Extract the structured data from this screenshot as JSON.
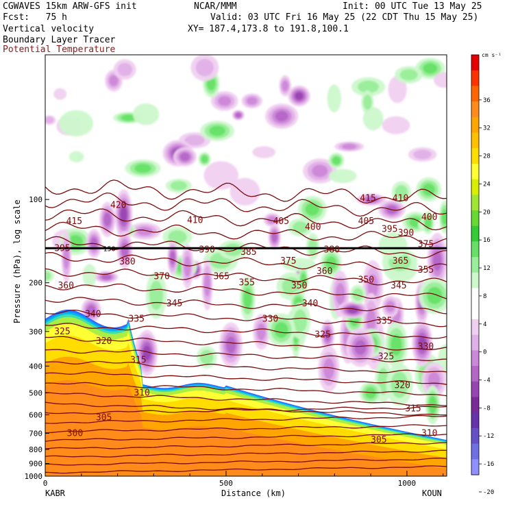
{
  "header": {
    "line1_left": "CGWAVES 15km ARW-GFS init",
    "line1_mid": "NCAR/MMM",
    "line1_right": "Init: 00 UTC Tue 13 May 25",
    "fcst": "Fcst:   75 h",
    "valid": "Valid: 03 UTC Fri 16 May 25 (22 CDT Thu 15 May 25)",
    "field1": "Vertical velocity",
    "xy": "XY= 187.4,173.8 to 191.8,100.1",
    "field2": "Boundary Layer Tracer",
    "field3": "Potential Temperature"
  },
  "chart_data": {
    "type": "heatmap",
    "xlabel": "Distance (km)",
    "ylabel": "Pressure (hPa), log scale",
    "x_ticks": [
      "0",
      "500",
      "1000"
    ],
    "x_endpoints": {
      "left": "KABR",
      "right": "KOUN"
    },
    "xlim": [
      0,
      1110
    ],
    "y_ticks": [
      100,
      200,
      300,
      400,
      500,
      600,
      700,
      800,
      900,
      1000
    ],
    "ylim": [
      1000,
      30
    ],
    "log_scale": true,
    "colorbar": {
      "unit": "cm s⁻¹",
      "labels": [
        "36",
        "32",
        "28",
        "24",
        "20",
        "16",
        "12",
        "8",
        "4",
        "0",
        "-4",
        "-8",
        "-12",
        "-16",
        "-20"
      ],
      "colors": [
        "#e60000",
        "#ff3300",
        "#ff6600",
        "#ff8c1a",
        "#ffa500",
        "#ffc000",
        "#ffdd00",
        "#ffff33",
        "#d8f000",
        "#a0e633",
        "#66d933",
        "#33cc33",
        "#66e066",
        "#99ee99",
        "#ccf8cc",
        "#ffffff",
        "#ffffff",
        "#f0d0f0",
        "#e0b0e8",
        "#cc88d8",
        "#b366c6",
        "#9944b3",
        "#7a2a99",
        "#6633aa",
        "#6650c8",
        "#6f6fe6",
        "#8f8fff"
      ]
    },
    "theta_labels": [
      {
        "v": "420",
        "x": 180,
        "p": 105
      },
      {
        "v": "415",
        "x": 58,
        "p": 120
      },
      {
        "v": "410",
        "x": 392,
        "p": 119
      },
      {
        "v": "405",
        "x": 630,
        "p": 120
      },
      {
        "v": "400",
        "x": 718,
        "p": 126
      },
      {
        "v": "405",
        "x": 865,
        "p": 120
      },
      {
        "v": "415",
        "x": 870,
        "p": 99
      },
      {
        "v": "410",
        "x": 960,
        "p": 99
      },
      {
        "v": "400",
        "x": 1040,
        "p": 116
      },
      {
        "v": "395",
        "x": 930,
        "p": 128
      },
      {
        "v": "390",
        "x": 975,
        "p": 132
      },
      {
        "v": "375",
        "x": 1030,
        "p": 145
      },
      {
        "v": "395",
        "x": 25,
        "p": 150
      },
      {
        "v": "380",
        "x": 205,
        "p": 168
      },
      {
        "v": "390",
        "x": 425,
        "p": 152
      },
      {
        "v": "385",
        "x": 540,
        "p": 155
      },
      {
        "v": "375",
        "x": 650,
        "p": 167
      },
      {
        "v": "380",
        "x": 770,
        "p": 152
      },
      {
        "v": "365",
        "x": 960,
        "p": 167
      },
      {
        "v": "370",
        "x": 300,
        "p": 190
      },
      {
        "v": "365",
        "x": 465,
        "p": 190
      },
      {
        "v": "360",
        "x": 35,
        "p": 205
      },
      {
        "v": "360",
        "x": 750,
        "p": 182
      },
      {
        "v": "355",
        "x": 535,
        "p": 200
      },
      {
        "v": "350",
        "x": 680,
        "p": 205
      },
      {
        "v": "350",
        "x": 865,
        "p": 195
      },
      {
        "v": "345",
        "x": 955,
        "p": 205
      },
      {
        "v": "355",
        "x": 1030,
        "p": 180
      },
      {
        "v": "345",
        "x": 335,
        "p": 238
      },
      {
        "v": "340",
        "x": 710,
        "p": 238
      },
      {
        "v": "340",
        "x": 110,
        "p": 260
      },
      {
        "v": "335",
        "x": 230,
        "p": 270
      },
      {
        "v": "330",
        "x": 600,
        "p": 270
      },
      {
        "v": "335",
        "x": 915,
        "p": 275
      },
      {
        "v": "325",
        "x": 25,
        "p": 300
      },
      {
        "v": "325",
        "x": 745,
        "p": 308
      },
      {
        "v": "320",
        "x": 140,
        "p": 325
      },
      {
        "v": "330",
        "x": 1030,
        "p": 340
      },
      {
        "v": "325",
        "x": 920,
        "p": 370
      },
      {
        "v": "315",
        "x": 235,
        "p": 380
      },
      {
        "v": "320",
        "x": 965,
        "p": 470
      },
      {
        "v": "310",
        "x": 245,
        "p": 500
      },
      {
        "v": "315",
        "x": 995,
        "p": 570
      },
      {
        "v": "305",
        "x": 140,
        "p": 615
      },
      {
        "v": "310",
        "x": 1040,
        "p": 700
      },
      {
        "v": "300",
        "x": 60,
        "p": 700
      },
      {
        "v": "305",
        "x": 900,
        "p": 740
      }
    ],
    "tropopause_label": {
      "v": "150",
      "x": 160,
      "p": 150
    }
  }
}
